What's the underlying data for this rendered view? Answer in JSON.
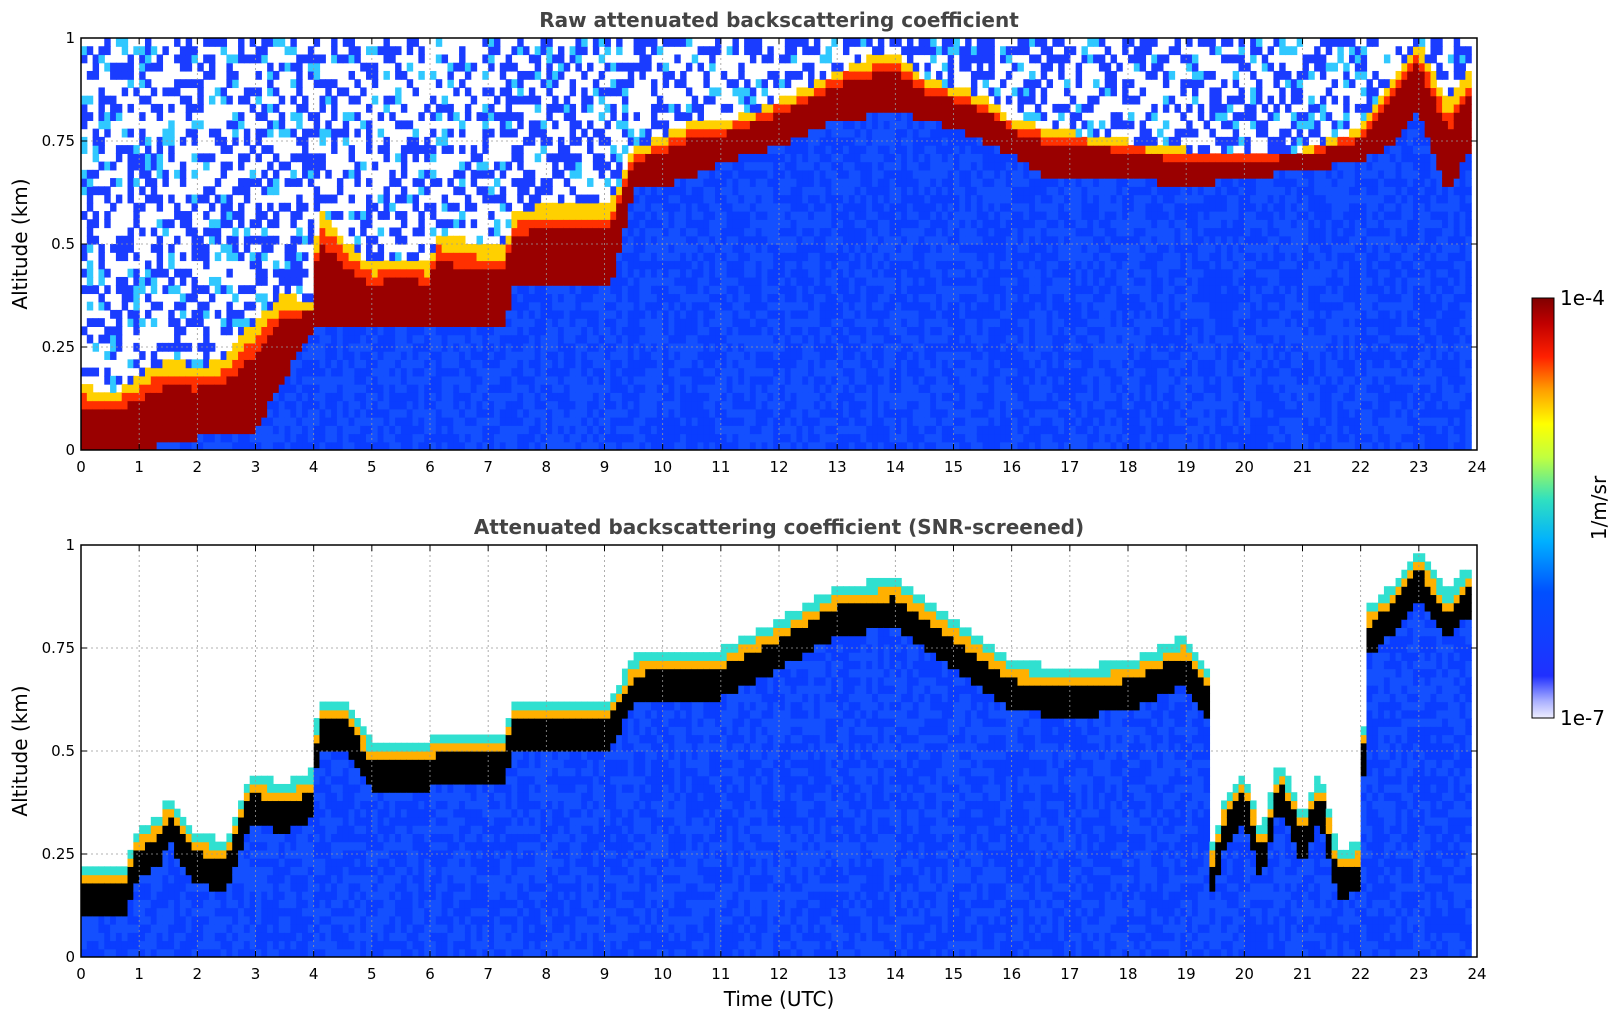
{
  "chart_data": [
    {
      "type": "heatmap",
      "title": "Raw attenuated backscattering coefficient",
      "xlabel": "",
      "ylabel": "Altitude (km)",
      "xlim": [
        0,
        24
      ],
      "ylim": [
        0,
        1
      ],
      "x_ticks": [
        "0",
        "1",
        "2",
        "3",
        "4",
        "5",
        "6",
        "7",
        "8",
        "9",
        "10",
        "11",
        "12",
        "13",
        "14",
        "15",
        "16",
        "17",
        "18",
        "19",
        "20",
        "21",
        "22",
        "23",
        "24"
      ],
      "y_ticks": [
        "0",
        "0.25",
        "0.5",
        "0.75",
        "1"
      ],
      "grid": true,
      "screened": false,
      "layer_top_km": [
        [
          0.0,
          0.16
        ],
        [
          0.5,
          0.13
        ],
        [
          1.0,
          0.18
        ],
        [
          1.5,
          0.22
        ],
        [
          2.0,
          0.2
        ],
        [
          2.5,
          0.22
        ],
        [
          2.9,
          0.3
        ],
        [
          3.5,
          0.38
        ],
        [
          3.95,
          0.36
        ],
        [
          4.1,
          0.6
        ],
        [
          4.6,
          0.5
        ],
        [
          5.0,
          0.45
        ],
        [
          5.5,
          0.47
        ],
        [
          6.0,
          0.45
        ],
        [
          6.1,
          0.53
        ],
        [
          6.8,
          0.5
        ],
        [
          7.3,
          0.49
        ],
        [
          7.4,
          0.57
        ],
        [
          8.0,
          0.6
        ],
        [
          8.5,
          0.6
        ],
        [
          9.1,
          0.6
        ],
        [
          9.5,
          0.73
        ],
        [
          10.0,
          0.76
        ],
        [
          10.5,
          0.8
        ],
        [
          11.0,
          0.79
        ],
        [
          11.5,
          0.82
        ],
        [
          12.0,
          0.85
        ],
        [
          12.5,
          0.88
        ],
        [
          13.0,
          0.92
        ],
        [
          13.5,
          0.95
        ],
        [
          14.0,
          0.96
        ],
        [
          14.5,
          0.9
        ],
        [
          15.0,
          0.88
        ],
        [
          15.5,
          0.86
        ],
        [
          16.0,
          0.8
        ],
        [
          16.7,
          0.78
        ],
        [
          17.5,
          0.76
        ],
        [
          18.5,
          0.74
        ],
        [
          19.0,
          0.73
        ],
        [
          20.0,
          0.72
        ],
        [
          21.0,
          0.73
        ],
        [
          22.0,
          0.78
        ],
        [
          22.5,
          0.9
        ],
        [
          23.0,
          0.99
        ],
        [
          23.5,
          0.84
        ],
        [
          23.85,
          0.92
        ]
      ],
      "layer_base_km": [
        [
          0.0,
          0.0
        ],
        [
          1.0,
          0.0
        ],
        [
          2.0,
          0.03
        ],
        [
          3.0,
          0.05
        ],
        [
          4.0,
          0.3
        ],
        [
          5.0,
          0.3
        ],
        [
          6.0,
          0.3
        ],
        [
          7.3,
          0.29
        ],
        [
          7.4,
          0.4
        ],
        [
          9.1,
          0.4
        ],
        [
          9.5,
          0.63
        ],
        [
          10.5,
          0.66
        ],
        [
          11.0,
          0.7
        ],
        [
          12.0,
          0.74
        ],
        [
          13.0,
          0.8
        ],
        [
          14.0,
          0.82
        ],
        [
          15.0,
          0.78
        ],
        [
          16.0,
          0.72
        ],
        [
          16.7,
          0.65
        ],
        [
          17.5,
          0.67
        ],
        [
          18.5,
          0.65
        ],
        [
          19.0,
          0.64
        ],
        [
          20.0,
          0.66
        ],
        [
          21.0,
          0.68
        ],
        [
          22.0,
          0.7
        ],
        [
          22.5,
          0.74
        ],
        [
          23.0,
          0.82
        ],
        [
          23.5,
          0.62
        ],
        [
          23.85,
          0.72
        ]
      ],
      "colorbar": {
        "scale": "log",
        "min_label": "1e-7",
        "max_label": "1e-4",
        "label": "1/m/sr",
        "colormap": "jet"
      }
    },
    {
      "type": "heatmap",
      "title": "Attenuated backscattering coefficient (SNR-screened)",
      "xlabel": "Time (UTC)",
      "ylabel": "Altitude (km)",
      "xlim": [
        0,
        24
      ],
      "ylim": [
        0,
        1
      ],
      "x_ticks": [
        "0",
        "1",
        "2",
        "3",
        "4",
        "5",
        "6",
        "7",
        "8",
        "9",
        "10",
        "11",
        "12",
        "13",
        "14",
        "15",
        "16",
        "17",
        "18",
        "19",
        "20",
        "21",
        "22",
        "23",
        "24"
      ],
      "y_ticks": [
        "0",
        "0.25",
        "0.5",
        "0.75",
        "1"
      ],
      "grid": true,
      "screened": true,
      "signal_top_km": [
        [
          0.0,
          0.22
        ],
        [
          0.8,
          0.22
        ],
        [
          0.9,
          0.3
        ],
        [
          1.4,
          0.35
        ],
        [
          1.5,
          0.4
        ],
        [
          2.0,
          0.3
        ],
        [
          2.5,
          0.28
        ],
        [
          2.9,
          0.45
        ],
        [
          3.5,
          0.42
        ],
        [
          3.95,
          0.45
        ],
        [
          4.1,
          0.63
        ],
        [
          4.6,
          0.62
        ],
        [
          5.0,
          0.52
        ],
        [
          6.0,
          0.52
        ],
        [
          6.1,
          0.55
        ],
        [
          7.3,
          0.55
        ],
        [
          7.4,
          0.63
        ],
        [
          9.1,
          0.63
        ],
        [
          9.5,
          0.73
        ],
        [
          10.0,
          0.75
        ],
        [
          11.0,
          0.75
        ],
        [
          12.0,
          0.82
        ],
        [
          13.0,
          0.9
        ],
        [
          14.0,
          0.92
        ],
        [
          15.0,
          0.82
        ],
        [
          16.0,
          0.72
        ],
        [
          17.0,
          0.7
        ],
        [
          18.0,
          0.72
        ],
        [
          19.0,
          0.78
        ],
        [
          19.35,
          0.7
        ],
        [
          19.4,
          0.25
        ],
        [
          19.7,
          0.4
        ],
        [
          20.0,
          0.45
        ],
        [
          20.3,
          0.3
        ],
        [
          20.6,
          0.48
        ],
        [
          21.0,
          0.35
        ],
        [
          21.3,
          0.45
        ],
        [
          21.6,
          0.26
        ],
        [
          22.0,
          0.28
        ],
        [
          22.1,
          0.85
        ],
        [
          22.5,
          0.9
        ],
        [
          23.0,
          0.99
        ],
        [
          23.5,
          0.88
        ],
        [
          23.85,
          0.95
        ]
      ],
      "colorbar": {
        "scale": "log",
        "min_label": "1e-7",
        "max_label": "1e-4",
        "label": "1/m/sr",
        "colormap": "jet"
      }
    }
  ]
}
